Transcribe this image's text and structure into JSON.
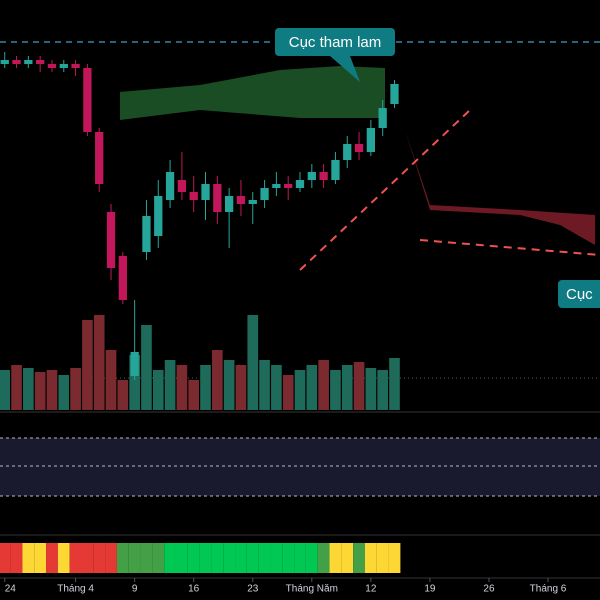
{
  "chart_data": {
    "type": "candlestick",
    "x": [
      0,
      1,
      2,
      3,
      4,
      5,
      6,
      7,
      8,
      9,
      10,
      11,
      12,
      13,
      14,
      15,
      16,
      17,
      18,
      19,
      20,
      21,
      22,
      23,
      24,
      25,
      26,
      27,
      28,
      29,
      30,
      31,
      32,
      33
    ],
    "open": [
      84,
      85,
      84,
      85,
      84,
      83,
      84,
      83,
      67,
      47,
      36,
      6,
      37,
      41,
      50,
      55,
      52,
      50,
      54,
      47,
      51,
      49,
      50,
      53,
      54,
      53,
      55,
      57,
      55,
      60,
      64,
      62,
      68,
      74
    ],
    "high": [
      87,
      86,
      86,
      86,
      85,
      85,
      85,
      84,
      68,
      49,
      37,
      25,
      50,
      55,
      60,
      62,
      56,
      57,
      56,
      53,
      55,
      52,
      55,
      57,
      56,
      57,
      59,
      59,
      62,
      66,
      67,
      70,
      75,
      80
    ],
    "low": [
      83,
      83,
      83,
      82,
      82,
      82,
      81,
      66,
      52,
      30,
      24,
      5,
      35,
      38,
      48,
      50,
      47,
      45,
      44,
      38,
      46,
      44,
      48,
      51,
      50,
      52,
      53,
      53,
      54,
      58,
      60,
      61,
      66,
      73
    ],
    "close": [
      85,
      84,
      85,
      84,
      83,
      84,
      83,
      67,
      54,
      33,
      25,
      12,
      46,
      51,
      57,
      52,
      50,
      54,
      47,
      51,
      49,
      50,
      53,
      54,
      53,
      55,
      57,
      55,
      60,
      64,
      62,
      68,
      73,
      79
    ],
    "volume": [
      40,
      45,
      42,
      38,
      40,
      35,
      42,
      90,
      95,
      60,
      30,
      55,
      85,
      40,
      50,
      45,
      30,
      45,
      60,
      50,
      45,
      95,
      50,
      45,
      35,
      40,
      45,
      50,
      40,
      45,
      48,
      42,
      40,
      52
    ],
    "up_color": "#26a69a",
    "down_color": "#c2185b",
    "volume_up_color": "#1e6b5c",
    "volume_down_color": "#7b2a30",
    "xlim": [
      -0.4,
      50.4
    ],
    "ylim": [
      0,
      100
    ],
    "volume_ylim": [
      0,
      100
    ],
    "xticks": [
      {
        "value": 0,
        "label": "24"
      },
      {
        "value": 6,
        "label": "Tháng 4"
      },
      {
        "value": 11,
        "label": "9"
      },
      {
        "value": 16,
        "label": "16"
      },
      {
        "value": 21,
        "label": "23"
      },
      {
        "value": 26,
        "label": "Tháng Năm"
      },
      {
        "value": 31,
        "label": "12"
      },
      {
        "value": 36,
        "label": "19"
      },
      {
        "value": 41,
        "label": "26"
      },
      {
        "value": 46,
        "label": "Tháng 6"
      }
    ],
    "heat_colors": [
      "#e53935",
      "#e53935",
      "#fdd835",
      "#fdd835",
      "#e53935",
      "#fdd835",
      "#e53935",
      "#e53935",
      "#e53935",
      "#e53935",
      "#43a047",
      "#43a047",
      "#43a047",
      "#43a047",
      "#00c853",
      "#00c853",
      "#00c853",
      "#00c853",
      "#00c853",
      "#00c853",
      "#00c853",
      "#00c853",
      "#00c853",
      "#00c853",
      "#00c853",
      "#00c853",
      "#00c853",
      "#43a047",
      "#fdd835",
      "#fdd835",
      "#43a047",
      "#fdd835",
      "#fdd835",
      "#fdd835"
    ],
    "annotations": [
      "Cục tham lam",
      "Cục"
    ]
  }
}
